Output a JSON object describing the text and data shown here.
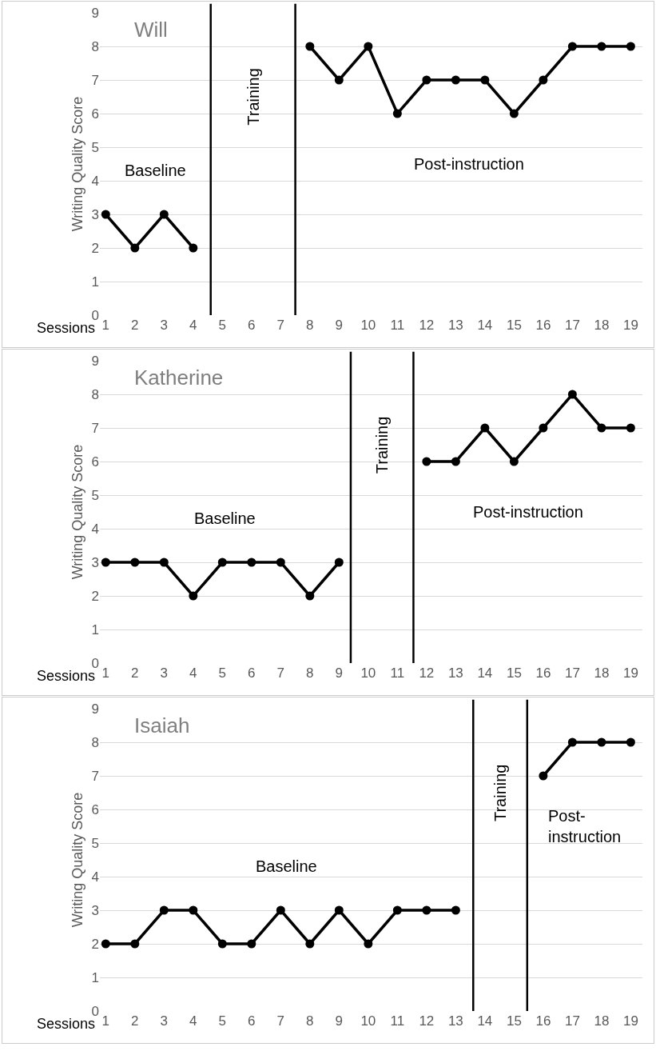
{
  "chart_data": [
    {
      "type": "line",
      "title": "Will",
      "xlabel": "Sessions",
      "ylabel": "Writing Quality Score",
      "x": [
        1,
        2,
        3,
        4,
        5,
        6,
        7,
        8,
        9,
        10,
        11,
        12,
        13,
        14,
        15,
        16,
        17,
        18,
        19
      ],
      "series": [
        {
          "color": "#000000",
          "values": [
            3,
            2,
            3,
            2,
            null,
            null,
            null,
            8,
            7,
            8,
            6,
            7,
            7,
            7,
            6,
            7,
            8,
            8,
            8
          ]
        }
      ],
      "xlim": [
        0.8,
        19.4
      ],
      "xticks": [
        1,
        2,
        3,
        4,
        5,
        6,
        7,
        8,
        9,
        10,
        11,
        12,
        13,
        14,
        15,
        16,
        17,
        18,
        19
      ],
      "ylim": [
        0,
        9
      ],
      "yticks": [
        0,
        1,
        2,
        3,
        4,
        5,
        6,
        7,
        8,
        9
      ],
      "grid": "y",
      "marker": "circle",
      "line_style": "solid",
      "ref_lines": [
        {
          "axis": "x",
          "value": 4.6,
          "color": "#000000"
        },
        {
          "axis": "x",
          "value": 7.5,
          "color": "#000000"
        }
      ],
      "annotations": [
        "Baseline",
        "Training",
        "Post-instruction"
      ]
    },
    {
      "type": "line",
      "title": "Katherine",
      "xlabel": "Sessions",
      "ylabel": "Writing Quality Score",
      "x": [
        1,
        2,
        3,
        4,
        5,
        6,
        7,
        8,
        9,
        10,
        11,
        12,
        13,
        14,
        15,
        16,
        17,
        18,
        19
      ],
      "series": [
        {
          "color": "#000000",
          "values": [
            3,
            3,
            3,
            2,
            3,
            3,
            3,
            2,
            3,
            null,
            null,
            6,
            6,
            7,
            6,
            7,
            8,
            7,
            7
          ]
        }
      ],
      "xlim": [
        0.8,
        19.4
      ],
      "xticks": [
        1,
        2,
        3,
        4,
        5,
        6,
        7,
        8,
        9,
        10,
        11,
        12,
        13,
        14,
        15,
        16,
        17,
        18,
        19
      ],
      "ylim": [
        0,
        9
      ],
      "yticks": [
        0,
        1,
        2,
        3,
        4,
        5,
        6,
        7,
        8,
        9
      ],
      "grid": "y",
      "marker": "circle",
      "line_style": "solid",
      "ref_lines": [
        {
          "axis": "x",
          "value": 9.4,
          "color": "#000000"
        },
        {
          "axis": "x",
          "value": 11.55,
          "color": "#000000"
        }
      ],
      "annotations": [
        "Baseline",
        "Training",
        "Post-instruction"
      ]
    },
    {
      "type": "line",
      "title": "Isaiah",
      "xlabel": "Sessions",
      "ylabel": "Writing Quality Score",
      "x": [
        1,
        2,
        3,
        4,
        5,
        6,
        7,
        8,
        9,
        10,
        11,
        12,
        13,
        14,
        15,
        16,
        17,
        18,
        19
      ],
      "series": [
        {
          "color": "#000000",
          "values": [
            2,
            2,
            3,
            3,
            2,
            2,
            3,
            2,
            3,
            2,
            3,
            3,
            3,
            null,
            null,
            7,
            8,
            8,
            8
          ]
        }
      ],
      "xlim": [
        0.8,
        19.4
      ],
      "xticks": [
        1,
        2,
        3,
        4,
        5,
        6,
        7,
        8,
        9,
        10,
        11,
        12,
        13,
        14,
        15,
        16,
        17,
        18,
        19
      ],
      "ylim": [
        0,
        9
      ],
      "yticks": [
        0,
        1,
        2,
        3,
        4,
        5,
        6,
        7,
        8,
        9
      ],
      "grid": "y",
      "marker": "circle",
      "line_style": "solid",
      "ref_lines": [
        {
          "axis": "x",
          "value": 13.6,
          "color": "#000000"
        },
        {
          "axis": "x",
          "value": 15.45,
          "color": "#000000"
        }
      ],
      "annotations": [
        "Baseline",
        "Training",
        "Post-\ninstruction"
      ]
    }
  ]
}
